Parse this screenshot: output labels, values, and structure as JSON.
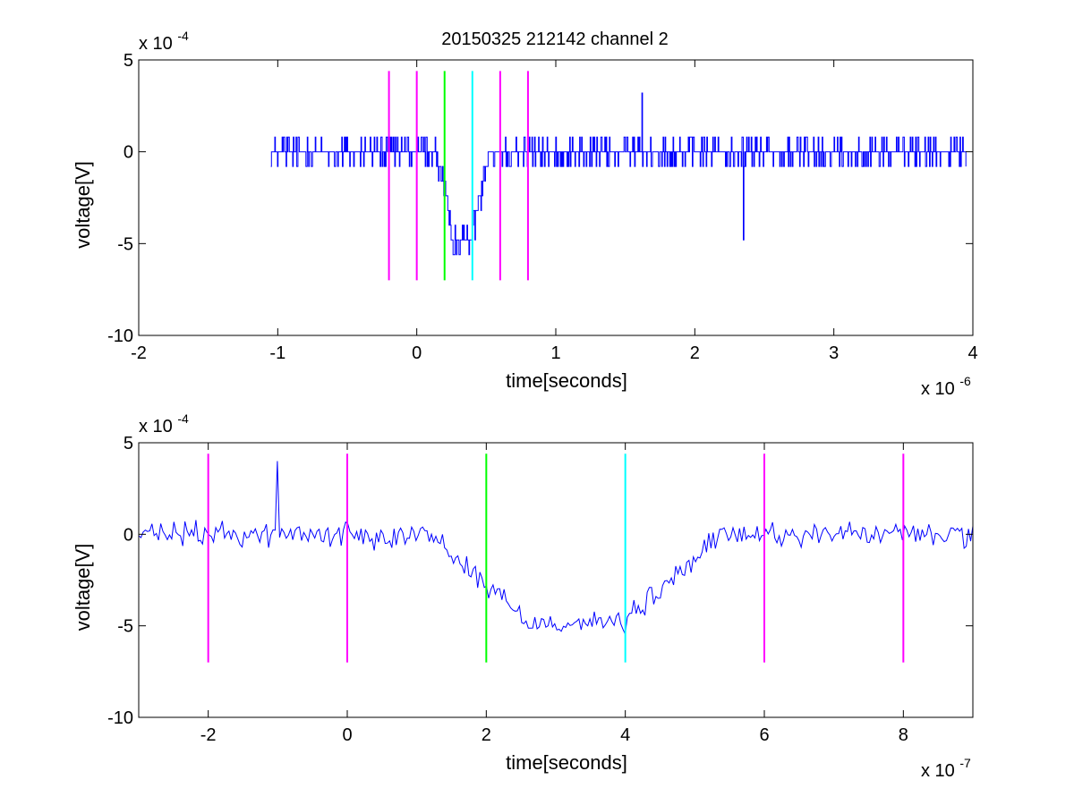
{
  "figure": {
    "title": "20150325 212142 channel 2",
    "colors": {
      "signal": "#0000ff",
      "event_markers": "#ff00ff",
      "start_marker": "#00ff00",
      "end_marker": "#00ffff",
      "axes": "#000000"
    }
  },
  "chart_data": [
    {
      "type": "line",
      "title": "20150325 212142 channel 2",
      "xlabel": "time[seconds]",
      "ylabel": "voltage[V]",
      "x_exponent_label": "x 10",
      "x_exponent": "-6",
      "y_exponent_label": "x 10",
      "y_exponent": "-4",
      "xlim": [
        -2e-06,
        4e-06
      ],
      "ylim": [
        -0.001,
        0.0005
      ],
      "x_ticks": [
        -2e-06,
        -1e-06,
        0,
        1e-06,
        2e-06,
        3e-06,
        4e-06
      ],
      "x_tick_labels": [
        "-2",
        "-1",
        "0",
        "1",
        "2",
        "3",
        "4"
      ],
      "y_ticks": [
        -0.001,
        -0.0005,
        0,
        0.0005
      ],
      "y_tick_labels": [
        "-10",
        "-5",
        "0",
        "5"
      ],
      "grid": false,
      "series": [
        {
          "style": "step-noise",
          "x_start": -1.05e-06,
          "x_end": 3.95e-06,
          "baseline": 0,
          "dip_start": 2e-07,
          "dip_end": 4.5e-07,
          "dip_level": -0.00048,
          "noise_amplitude": 0.00012,
          "min_spike": {
            "x": 2.35e-06,
            "y": -0.00048
          },
          "max_spike": {
            "x": 1.62e-06,
            "y": 0.00032
          }
        }
      ],
      "markers": [
        {
          "x": -2e-07,
          "kind": "event",
          "y_from": -0.0007,
          "y_to": 0.00044
        },
        {
          "x": 0,
          "kind": "event",
          "y_from": -0.0007,
          "y_to": 0.00044
        },
        {
          "x": 2e-07,
          "kind": "start",
          "y_from": -0.0007,
          "y_to": 0.00044
        },
        {
          "x": 4e-07,
          "kind": "end",
          "y_from": -0.0007,
          "y_to": 0.00044
        },
        {
          "x": 6e-07,
          "kind": "event",
          "y_from": -0.0007,
          "y_to": 0.00044
        },
        {
          "x": 8e-07,
          "kind": "event",
          "y_from": -0.0007,
          "y_to": 0.00044
        }
      ]
    },
    {
      "type": "line",
      "title": "",
      "xlabel": "time[seconds]",
      "ylabel": "voltage[V]",
      "x_exponent_label": "x 10",
      "x_exponent": "-7",
      "y_exponent_label": "x 10",
      "y_exponent": "-4",
      "xlim": [
        -3e-07,
        9e-07
      ],
      "ylim": [
        -0.001,
        0.0005
      ],
      "x_ticks": [
        -2e-07,
        0,
        2e-07,
        4e-07,
        6e-07,
        8e-07
      ],
      "x_tick_labels": [
        "-2",
        "0",
        "2",
        "4",
        "6",
        "8"
      ],
      "y_ticks": [
        -0.001,
        -0.0005,
        0,
        0.0005
      ],
      "y_tick_labels": [
        "-10",
        "-5",
        "0",
        "5"
      ],
      "grid": false,
      "series": [
        {
          "style": "line-noise",
          "x_start": -3e-07,
          "x_end": 9e-07,
          "baseline": 0,
          "dip_start": 1.9e-07,
          "dip_end": 4.7e-07,
          "dip_level": -0.00048,
          "noise_amplitude": 0.0001,
          "max_spike": {
            "x": -1e-07,
            "y": 0.0004
          }
        }
      ],
      "markers": [
        {
          "x": -2e-07,
          "kind": "event",
          "y_from": -0.0007,
          "y_to": 0.00044
        },
        {
          "x": 0,
          "kind": "event",
          "y_from": -0.0007,
          "y_to": 0.00044
        },
        {
          "x": 2e-07,
          "kind": "start",
          "y_from": -0.0007,
          "y_to": 0.00044
        },
        {
          "x": 4e-07,
          "kind": "end",
          "y_from": -0.0007,
          "y_to": 0.00044
        },
        {
          "x": 6e-07,
          "kind": "event",
          "y_from": -0.0007,
          "y_to": 0.00044
        },
        {
          "x": 8e-07,
          "kind": "event",
          "y_from": -0.0007,
          "y_to": 0.00044
        }
      ]
    }
  ]
}
